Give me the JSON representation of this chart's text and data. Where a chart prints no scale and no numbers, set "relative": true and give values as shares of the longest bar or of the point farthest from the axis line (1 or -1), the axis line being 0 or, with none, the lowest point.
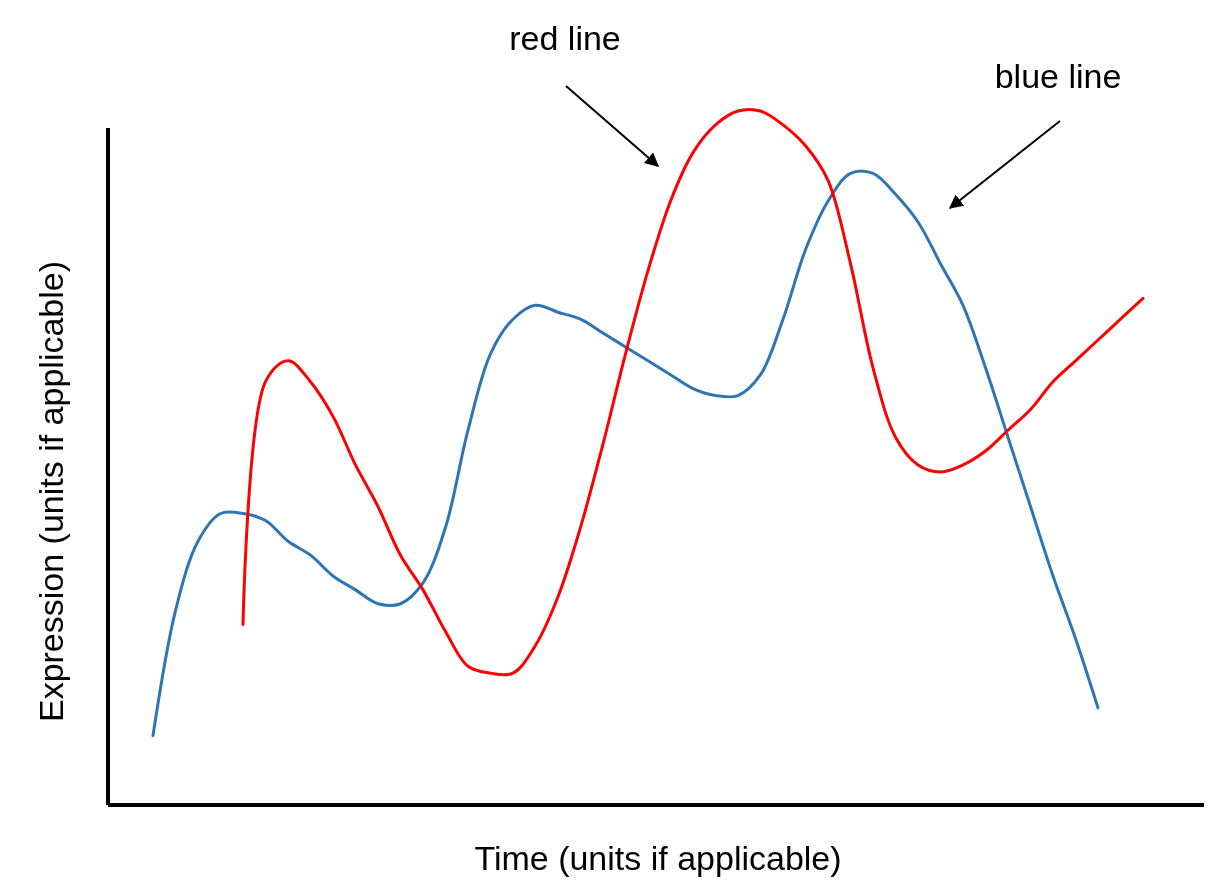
{
  "chart_data": {
    "type": "line",
    "relative": true,
    "xlabel": "Time (units if applicable)",
    "ylabel": "Expression (units if applicable)",
    "annotations": [
      "red line",
      "blue line"
    ],
    "categories": [
      null,
      null,
      null,
      null,
      null,
      null,
      null,
      null,
      null,
      null,
      null,
      null,
      null,
      null,
      null,
      null,
      null,
      null,
      null,
      null,
      null,
      null,
      null,
      null,
      null,
      null,
      null,
      null,
      null,
      null,
      null,
      null,
      null,
      null,
      null,
      null,
      null,
      null,
      null,
      null,
      null,
      null,
      null,
      null,
      null
    ],
    "series": [
      {
        "color": "#2e75b6",
        "values": [
          0.1,
          0.28,
          0.38,
          0.42,
          0.42,
          0.41,
          0.38,
          0.36,
          0.33,
          0.31,
          0.29,
          0.29,
          0.32,
          0.4,
          0.54,
          0.65,
          0.7,
          0.72,
          0.71,
          0.7,
          0.68,
          0.66,
          0.64,
          0.62,
          0.6,
          0.59,
          0.59,
          0.62,
          0.7,
          0.8,
          0.87,
          0.91,
          0.91,
          0.88,
          0.84,
          0.78,
          0.72,
          0.63,
          0.53,
          0.43,
          0.33,
          0.24,
          0.14,
          null,
          null
        ]
      },
      {
        "color": "#ff0000",
        "values": [
          null,
          null,
          null,
          null,
          0.26,
          0.61,
          0.64,
          0.61,
          0.56,
          0.49,
          0.43,
          0.36,
          0.31,
          0.25,
          0.2,
          0.19,
          0.19,
          0.23,
          0.3,
          0.4,
          0.52,
          0.65,
          0.77,
          0.87,
          0.94,
          0.98,
          1.0,
          1.0,
          0.98,
          0.95,
          0.9,
          0.78,
          0.63,
          0.53,
          0.49,
          0.48,
          0.49,
          0.51,
          0.54,
          0.57,
          0.61,
          0.64,
          0.67,
          0.7,
          0.73
        ]
      }
    ]
  }
}
